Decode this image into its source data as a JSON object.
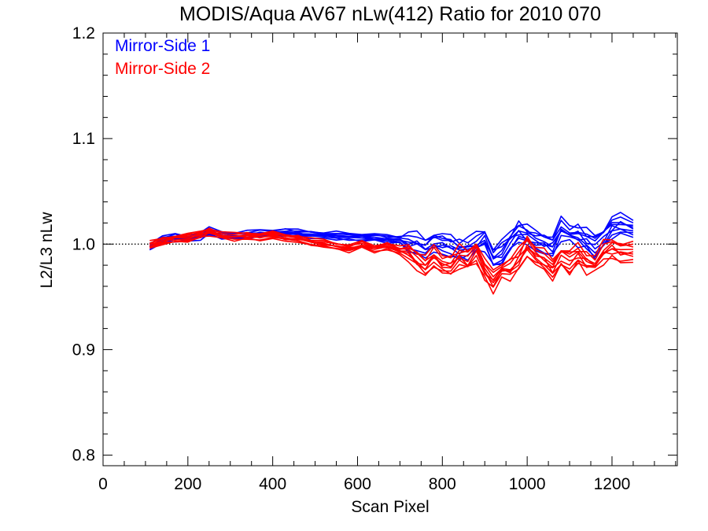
{
  "chart_data": {
    "type": "line",
    "title": "MODIS/Aqua AV67 nLw(412) Ratio for 2010 070",
    "xlabel": "Scan Pixel",
    "ylabel": "L2/L3 nLw",
    "xlim": [
      0,
      1354
    ],
    "ylim": [
      0.79,
      1.2
    ],
    "x_ticks": [
      0,
      200,
      400,
      600,
      800,
      1000,
      1200
    ],
    "y_ticks": [
      0.8,
      0.9,
      1.0,
      1.1,
      1.2
    ],
    "x_tick_labels": [
      "0",
      "200",
      "400",
      "600",
      "800",
      "1000",
      "1200"
    ],
    "y_tick_labels": [
      "0.8",
      "0.9",
      "1.0",
      "1.1",
      "1.2"
    ],
    "reference_line": {
      "y": 1.0,
      "style": "dotted"
    },
    "legend_position": "top-left",
    "grid": false,
    "x": [
      110,
      140,
      170,
      200,
      230,
      250,
      280,
      310,
      340,
      370,
      400,
      430,
      460,
      490,
      520,
      550,
      580,
      610,
      640,
      670,
      700,
      720,
      740,
      760,
      780,
      800,
      820,
      840,
      860,
      880,
      900,
      920,
      940,
      960,
      980,
      1000,
      1020,
      1040,
      1060,
      1080,
      1100,
      1120,
      1140,
      1160,
      1180,
      1200,
      1220,
      1250
    ],
    "series": [
      {
        "name": "Mirror-Side 1",
        "color": "#0000ff",
        "values": [
          0.998,
          1.004,
          1.006,
          1.005,
          1.008,
          1.012,
          1.009,
          1.008,
          1.009,
          1.01,
          1.011,
          1.011,
          1.01,
          1.009,
          1.008,
          1.008,
          1.007,
          1.007,
          1.006,
          1.005,
          1.004,
          1.003,
          1.0,
          0.996,
          1.002,
          0.998,
          0.999,
          0.995,
          0.997,
          1.0,
          1.005,
          0.987,
          0.992,
          1.003,
          1.012,
          1.008,
          1.002,
          1.001,
          0.998,
          1.014,
          1.01,
          1.009,
          1.004,
          0.998,
          1.006,
          1.016,
          1.018,
          1.016
        ]
      },
      {
        "name": "Mirror-Side 2",
        "color": "#ff0000",
        "values": [
          0.999,
          1.003,
          1.005,
          1.006,
          1.009,
          1.012,
          1.008,
          1.007,
          1.008,
          1.007,
          1.008,
          1.006,
          1.005,
          1.002,
          1.001,
          0.998,
          0.996,
          0.999,
          0.996,
          0.998,
          0.994,
          0.99,
          0.985,
          0.979,
          0.988,
          0.983,
          0.979,
          0.988,
          0.985,
          0.994,
          0.975,
          0.965,
          0.975,
          0.976,
          0.985,
          0.998,
          0.99,
          0.984,
          0.976,
          0.988,
          0.983,
          0.99,
          0.983,
          0.981,
          0.992,
          0.996,
          0.993,
          0.991
        ]
      }
    ]
  }
}
